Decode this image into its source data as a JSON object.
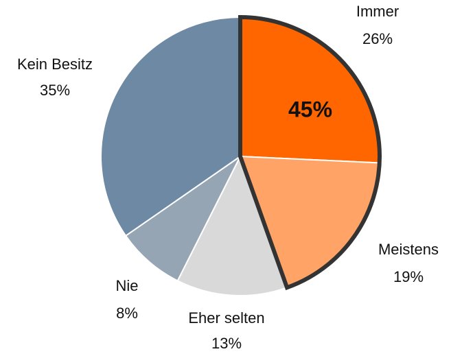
{
  "chart_data": {
    "type": "pie",
    "categories": [
      "Immer",
      "Meistens",
      "Eher selten",
      "Nie",
      "Kein Besitz"
    ],
    "values": [
      26,
      19,
      13,
      8,
      35
    ],
    "value_labels": [
      "26%",
      "19%",
      "13%",
      "8%",
      "35%"
    ],
    "colors": [
      "#ff6600",
      "#ffa366",
      "#d9d9d9",
      "#96a5b4",
      "#6e89a3"
    ],
    "highlight_categories": [
      "Immer",
      "Meistens"
    ],
    "annotation": "45%"
  }
}
